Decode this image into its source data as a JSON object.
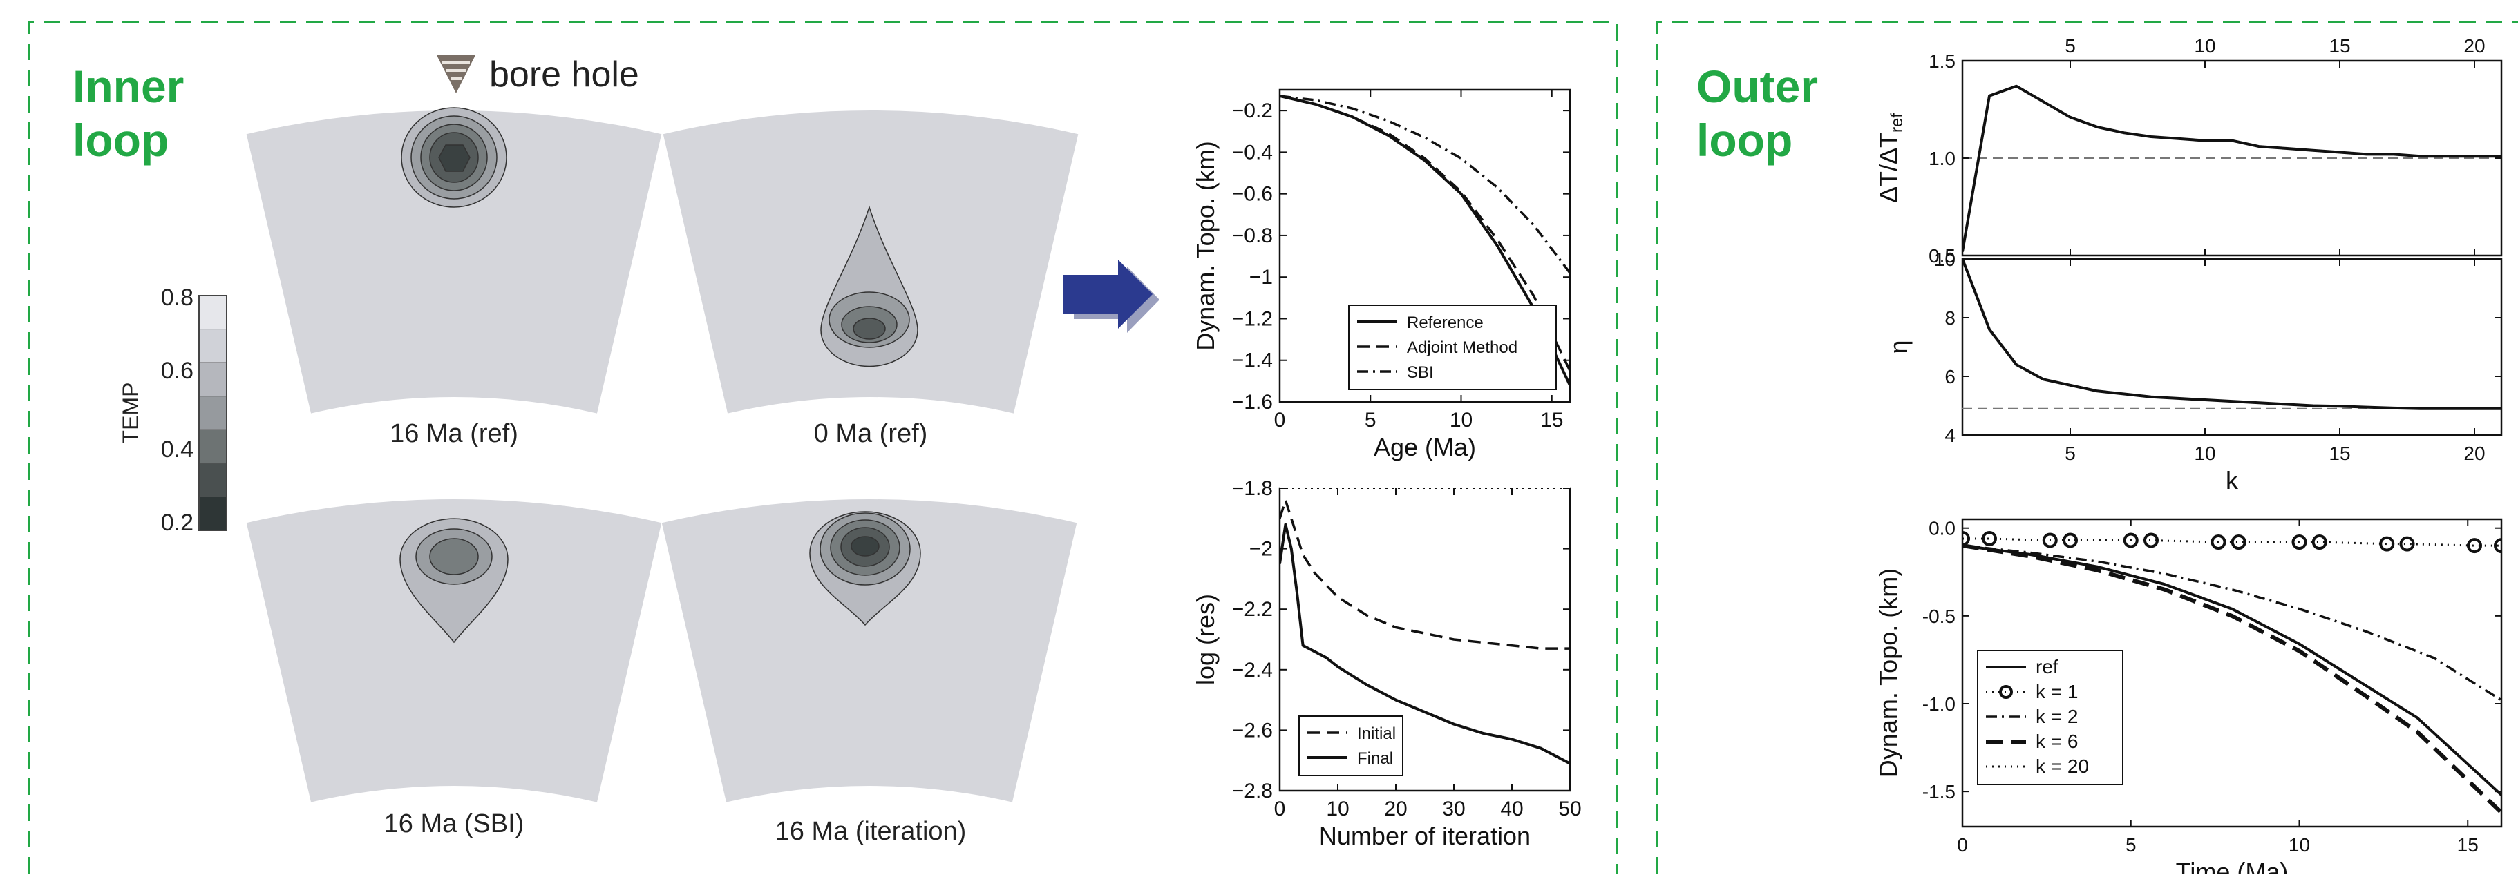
{
  "inner": {
    "heading_line1": "Inner",
    "heading_line2": "loop",
    "bore_hole_label": "bore hole",
    "colorbar": {
      "label": "TEMP",
      "ticks": [
        "0.8",
        "0.6",
        "0.4",
        "0.2"
      ],
      "swatches": [
        "#e6e7eb",
        "#d0d2d8",
        "#b5b7bd",
        "#969a9e",
        "#6d7373",
        "#4a5050",
        "#2e3636"
      ]
    },
    "panels": [
      {
        "caption": "16 Ma (ref)"
      },
      {
        "caption": "0 Ma (ref)"
      },
      {
        "caption": "16 Ma (SBI)"
      },
      {
        "caption": "16 Ma (iteration)"
      }
    ]
  },
  "outer": {
    "heading_line1": "Outer",
    "heading_line2": "loop"
  },
  "colors": {
    "frame_green": "#22a845",
    "heading_green": "#22a845",
    "arrow_navy": "#2b3a8f",
    "shell_gray": "#d5d6db",
    "contour_fills": [
      "#b8bac0",
      "#9a9ea2",
      "#777d7e",
      "#555b5b",
      "#3a4141"
    ]
  },
  "chart_data": [
    {
      "id": "dynamic-topography",
      "type": "line",
      "xlabel": "Age (Ma)",
      "ylabel": "Dynam. Topo. (km)",
      "xlim": [
        0,
        16
      ],
      "ylim": [
        -1.6,
        -0.1
      ],
      "xticks": [
        0,
        5,
        10,
        15
      ],
      "yticks": [
        -0.2,
        -0.4,
        -0.6,
        -0.8,
        -1.0,
        -1.2,
        -1.4,
        -1.6
      ],
      "legend": "bottom-right",
      "series": [
        {
          "name": "Reference",
          "style": "solid",
          "x": [
            0,
            2,
            4,
            6,
            8,
            10,
            12,
            14,
            16
          ],
          "y": [
            -0.13,
            -0.17,
            -0.23,
            -0.32,
            -0.44,
            -0.6,
            -0.85,
            -1.15,
            -1.52
          ]
        },
        {
          "name": "Adjoint Method",
          "style": "dashed",
          "x": [
            0,
            2,
            4,
            6,
            8,
            10,
            12,
            14,
            16
          ],
          "y": [
            -0.13,
            -0.17,
            -0.23,
            -0.31,
            -0.43,
            -0.59,
            -0.82,
            -1.09,
            -1.45
          ]
        },
        {
          "name": "SBI",
          "style": "dashdot",
          "x": [
            0,
            2,
            4,
            6,
            8,
            10,
            12,
            14,
            16
          ],
          "y": [
            -0.13,
            -0.15,
            -0.19,
            -0.25,
            -0.33,
            -0.43,
            -0.57,
            -0.75,
            -0.98
          ]
        }
      ]
    },
    {
      "id": "residual",
      "type": "line",
      "xlabel": "Number of iteration",
      "ylabel": "log (res)",
      "xlim": [
        0,
        50
      ],
      "ylim": [
        -2.8,
        -1.8
      ],
      "xticks": [
        0,
        10,
        20,
        30,
        40,
        50
      ],
      "yticks": [
        -1.8,
        -2.0,
        -2.2,
        -2.4,
        -2.6,
        -2.8
      ],
      "legend": "bottom-left",
      "series": [
        {
          "name": "Initial",
          "style": "dashed",
          "x": [
            0,
            1,
            2,
            4,
            6,
            8,
            10,
            15,
            20,
            25,
            30,
            35,
            40,
            45,
            50
          ],
          "y": [
            -1.9,
            -1.84,
            -1.9,
            -2.02,
            -2.08,
            -2.12,
            -2.16,
            -2.22,
            -2.26,
            -2.28,
            -2.3,
            -2.31,
            -2.32,
            -2.33,
            -2.33
          ]
        },
        {
          "name": "Final",
          "style": "solid",
          "x": [
            0,
            1,
            2,
            3,
            4,
            6,
            8,
            10,
            15,
            20,
            25,
            30,
            35,
            40,
            45,
            50
          ],
          "y": [
            -2.05,
            -1.92,
            -2.0,
            -2.15,
            -2.32,
            -2.34,
            -2.36,
            -2.39,
            -2.45,
            -2.5,
            -2.54,
            -2.58,
            -2.61,
            -2.63,
            -2.66,
            -2.71
          ]
        }
      ]
    },
    {
      "id": "misfit-ratio",
      "type": "line",
      "xlabel": "",
      "ylabel": "ΔT/ΔT",
      "ylabel_sub": "ref",
      "xlim": [
        1,
        21
      ],
      "ylim": [
        0.5,
        1.5
      ],
      "xticks": [
        5,
        10,
        15,
        20
      ],
      "yticks": [
        1.5,
        1.0,
        0.5
      ],
      "reference_line": 1.0,
      "series": [
        {
          "name": "",
          "style": "solid",
          "x": [
            1,
            2,
            3,
            4,
            5,
            6,
            7,
            8,
            9,
            10,
            11,
            12,
            13,
            14,
            15,
            16,
            17,
            18,
            19,
            20,
            21
          ],
          "y": [
            0.52,
            1.32,
            1.37,
            1.29,
            1.21,
            1.16,
            1.13,
            1.11,
            1.1,
            1.09,
            1.09,
            1.06,
            1.05,
            1.04,
            1.03,
            1.02,
            1.02,
            1.01,
            1.01,
            1.01,
            1.01
          ]
        }
      ]
    },
    {
      "id": "eta",
      "type": "line",
      "xlabel": "k",
      "ylabel": "η",
      "xlim": [
        1,
        21
      ],
      "ylim": [
        4,
        10
      ],
      "xticks": [
        5,
        10,
        15,
        20
      ],
      "yticks": [
        10,
        8,
        6,
        4
      ],
      "reference_line": 4.9,
      "series": [
        {
          "name": "",
          "style": "solid",
          "x": [
            1,
            2,
            3,
            4,
            5,
            6,
            7,
            8,
            9,
            10,
            11,
            12,
            13,
            14,
            15,
            16,
            17,
            18,
            19,
            20,
            21
          ],
          "y": [
            10.0,
            7.6,
            6.4,
            5.9,
            5.7,
            5.5,
            5.4,
            5.3,
            5.25,
            5.2,
            5.15,
            5.1,
            5.05,
            5.0,
            4.98,
            4.95,
            4.92,
            4.9,
            4.9,
            4.9,
            4.9
          ]
        }
      ]
    },
    {
      "id": "outer-topography",
      "type": "line",
      "xlabel": "Time (Ma)",
      "ylabel": "Dynam. Topo. (km)",
      "xlim": [
        0,
        16
      ],
      "ylim": [
        -1.7,
        0.05
      ],
      "xticks": [
        0,
        5,
        10,
        15
      ],
      "yticks": [
        0.0,
        -0.5,
        -1.0,
        -1.5
      ],
      "legend": "bottom-left",
      "series": [
        {
          "name": "ref",
          "style": "solid",
          "x": [
            0,
            2,
            4,
            6,
            8,
            10,
            12,
            13.5,
            16
          ],
          "y": [
            -0.1,
            -0.15,
            -0.22,
            -0.32,
            -0.46,
            -0.66,
            -0.9,
            -1.08,
            -1.52
          ]
        },
        {
          "name": "k = 1",
          "style": "dotted-circle",
          "x": [
            0,
            0.8,
            2.6,
            3.2,
            5.0,
            5.6,
            7.6,
            8.2,
            10.0,
            10.6,
            12.6,
            13.2,
            15.2,
            16
          ],
          "y": [
            -0.06,
            -0.06,
            -0.07,
            -0.07,
            -0.07,
            -0.07,
            -0.08,
            -0.08,
            -0.08,
            -0.08,
            -0.09,
            -0.09,
            -0.1,
            -0.1
          ]
        },
        {
          "name": "k = 2",
          "style": "dashdot",
          "x": [
            0,
            2,
            4,
            6,
            8,
            10,
            12,
            14,
            16
          ],
          "y": [
            -0.1,
            -0.14,
            -0.19,
            -0.26,
            -0.35,
            -0.46,
            -0.59,
            -0.74,
            -0.98
          ]
        },
        {
          "name": "k = 6",
          "style": "dashed-thick",
          "x": [
            0,
            2,
            4,
            6,
            8,
            10,
            12,
            13.5,
            16
          ],
          "y": [
            -0.1,
            -0.16,
            -0.24,
            -0.35,
            -0.5,
            -0.7,
            -0.96,
            -1.16,
            -1.62
          ]
        },
        {
          "name": "k = 20",
          "style": "dotted",
          "x": [
            0,
            2,
            4,
            6,
            8,
            10,
            12,
            13.5,
            16
          ],
          "y": [
            -0.1,
            -0.15,
            -0.22,
            -0.32,
            -0.46,
            -0.66,
            -0.9,
            -1.08,
            -1.52
          ]
        }
      ]
    }
  ]
}
